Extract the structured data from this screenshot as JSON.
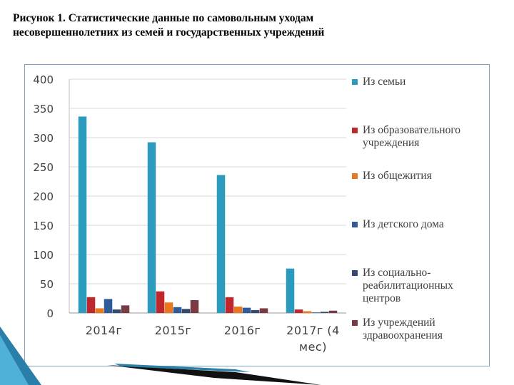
{
  "header": {
    "title_line1": "Рисунок 1. Статистические данные по самовольным уходам",
    "title_line2": "несовершеннолетних из семей и государственных учреждений"
  },
  "chart_data": {
    "type": "bar",
    "categories": [
      [
        "2014г"
      ],
      [
        "2015г"
      ],
      [
        "2016г"
      ],
      [
        "2017г (4",
        "мес)"
      ]
    ],
    "ylim": [
      0,
      400
    ],
    "yticks": [
      "0",
      "50",
      "100",
      "150",
      "200",
      "250",
      "300",
      "350",
      "400"
    ],
    "grid": true,
    "legend_position": "right",
    "series": [
      {
        "name": [
          "Из семьи"
        ],
        "color": "#2a9bbd",
        "values": [
          336,
          292,
          236,
          76
        ]
      },
      {
        "name": [
          "Из образовательного",
          "учреждения"
        ],
        "color": "#c0272d",
        "values": [
          27,
          37,
          27,
          6
        ]
      },
      {
        "name": [
          "Из общежития"
        ],
        "color": "#e8771e",
        "values": [
          8,
          18,
          11,
          3
        ]
      },
      {
        "name": [
          "Из детского дома"
        ],
        "color": "#2f5c99",
        "values": [
          24,
          10,
          9,
          1
        ]
      },
      {
        "name": [
          "Из социально-",
          "реабилитационных",
          "центров"
        ],
        "color": "#34496d",
        "values": [
          6,
          7,
          5,
          2
        ]
      },
      {
        "name": [
          "Из учреждений",
          "здравоохранения"
        ],
        "color": "#7a3a44",
        "values": [
          13,
          22,
          8,
          4
        ]
      }
    ]
  }
}
